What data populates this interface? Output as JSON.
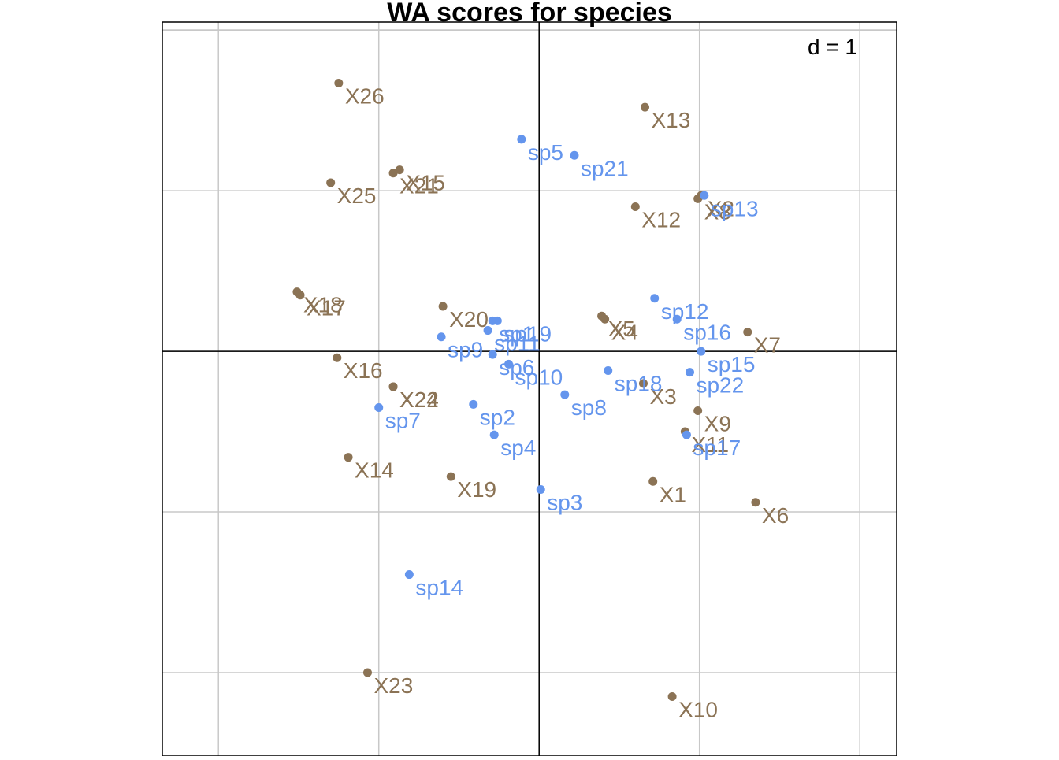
{
  "chart_data": {
    "type": "scatter",
    "title": "WA scores for species",
    "scale_label": "d = 1",
    "xlim": [
      -2.35,
      2.23
    ],
    "ylim": [
      -2.52,
      2.05
    ],
    "grid": true,
    "grid_ticks_x": [
      -2,
      -1,
      0,
      1,
      2
    ],
    "grid_ticks_y": [
      -2,
      -1,
      0,
      1,
      2
    ],
    "colors": {
      "sites": "#8B7355",
      "species": "#6495ED",
      "axes": "#000000",
      "grid": "#C8C8C8"
    },
    "series": [
      {
        "name": "",
        "group": "sites",
        "points": [
          {
            "label": "X1",
            "x": 0.71,
            "y": -0.81
          },
          {
            "label": "X2",
            "x": 1.01,
            "y": 0.97
          },
          {
            "label": "X3",
            "x": 0.65,
            "y": -0.2
          },
          {
            "label": "X4",
            "x": 0.41,
            "y": 0.2
          },
          {
            "label": "X5",
            "x": 0.39,
            "y": 0.22
          },
          {
            "label": "X6",
            "x": 1.35,
            "y": -0.94
          },
          {
            "label": "X7",
            "x": 1.3,
            "y": 0.12
          },
          {
            "label": "X8",
            "x": 0.99,
            "y": 0.95
          },
          {
            "label": "X9",
            "x": 0.99,
            "y": -0.37
          },
          {
            "label": "X10",
            "x": 0.83,
            "y": -2.15
          },
          {
            "label": "X11",
            "x": 0.91,
            "y": -0.5
          },
          {
            "label": "X12",
            "x": 0.6,
            "y": 0.9
          },
          {
            "label": "X13",
            "x": 0.66,
            "y": 1.52
          },
          {
            "label": "X14",
            "x": -1.19,
            "y": -0.66
          },
          {
            "label": "X15",
            "x": -0.87,
            "y": 1.13
          },
          {
            "label": "X16",
            "x": -1.26,
            "y": -0.04
          },
          {
            "label": "X17",
            "x": -1.49,
            "y": 0.35
          },
          {
            "label": "X18",
            "x": -1.51,
            "y": 0.37
          },
          {
            "label": "X19",
            "x": -0.55,
            "y": -0.78
          },
          {
            "label": "X20",
            "x": -0.6,
            "y": 0.28
          },
          {
            "label": "X21",
            "x": -0.91,
            "y": 1.11
          },
          {
            "label": "X22",
            "x": -0.91,
            "y": -0.22
          },
          {
            "label": "X23",
            "x": -1.07,
            "y": -2.0
          },
          {
            "label": "X24",
            "x": -0.91,
            "y": -0.22
          },
          {
            "label": "X25",
            "x": -1.3,
            "y": 1.05
          },
          {
            "label": "X26",
            "x": -1.25,
            "y": 1.67
          }
        ]
      },
      {
        "name": "",
        "group": "species",
        "points": [
          {
            "label": "sp1",
            "x": -0.29,
            "y": 0.19
          },
          {
            "label": "sp2",
            "x": -0.41,
            "y": -0.33
          },
          {
            "label": "sp3",
            "x": 0.01,
            "y": -0.86
          },
          {
            "label": "sp4",
            "x": -0.28,
            "y": -0.52
          },
          {
            "label": "sp5",
            "x": -0.11,
            "y": 1.32
          },
          {
            "label": "sp6",
            "x": -0.29,
            "y": -0.02
          },
          {
            "label": "sp7",
            "x": -1.0,
            "y": -0.35
          },
          {
            "label": "sp8",
            "x": 0.16,
            "y": -0.27
          },
          {
            "label": "sp9",
            "x": -0.61,
            "y": 0.09
          },
          {
            "label": "sp10",
            "x": -0.19,
            "y": -0.08
          },
          {
            "label": "sp11",
            "x": -0.32,
            "y": 0.13
          },
          {
            "label": "sp12",
            "x": 0.72,
            "y": 0.33
          },
          {
            "label": "sp13",
            "x": 1.03,
            "y": 0.97
          },
          {
            "label": "sp14",
            "x": -0.81,
            "y": -1.39
          },
          {
            "label": "sp15",
            "x": 1.01,
            "y": 0.0
          },
          {
            "label": "sp16",
            "x": 0.86,
            "y": 0.2
          },
          {
            "label": "sp17",
            "x": 0.92,
            "y": -0.52
          },
          {
            "label": "sp18",
            "x": 0.43,
            "y": -0.12
          },
          {
            "label": "sp19",
            "x": -0.26,
            "y": 0.19
          },
          {
            "label": "sp21",
            "x": 0.22,
            "y": 1.22
          },
          {
            "label": "sp22",
            "x": 0.94,
            "y": -0.13
          }
        ]
      }
    ]
  }
}
